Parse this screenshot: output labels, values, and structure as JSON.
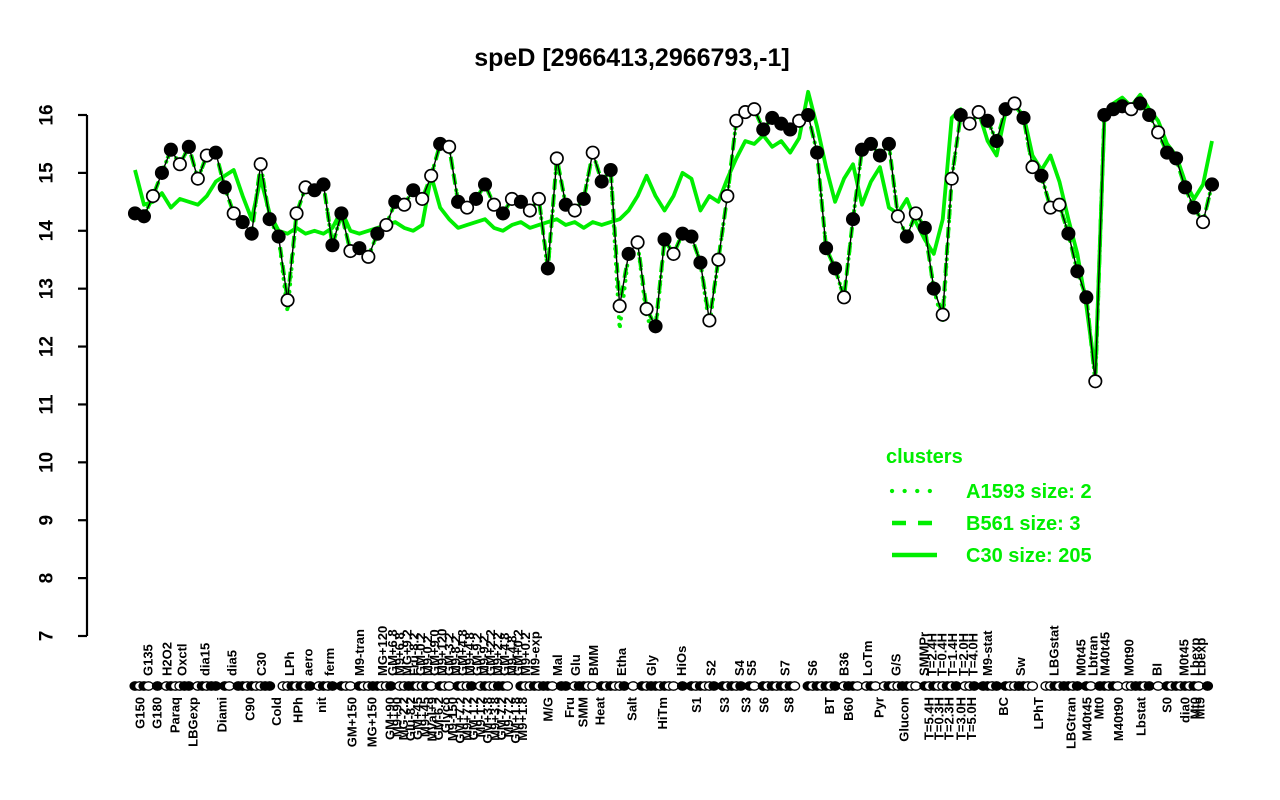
{
  "title": "speD [2966413,2966793,-1]",
  "colors": {
    "cluster_green": "#00ee00",
    "series_black": "#000000",
    "background": "#ffffff"
  },
  "legend": {
    "header": "clusters",
    "items": [
      {
        "label": "A1593 size: 2",
        "style": "dotted"
      },
      {
        "label": "B561 size: 3",
        "style": "dashed"
      },
      {
        "label": "C30 size: 205",
        "style": "solid"
      }
    ]
  },
  "chart_data": {
    "type": "line",
    "title": "speD [2966413,2966793,-1]",
    "ylabel": "",
    "xlabel": "",
    "ylim": [
      7,
      16
    ],
    "yticks": [
      7,
      8,
      9,
      10,
      11,
      12,
      13,
      14,
      15,
      16
    ],
    "x_index_range": [
      0,
      120
    ],
    "grid": false,
    "legend_position": "right-middle",
    "series": [
      {
        "name": "speD expression",
        "color": "#000000",
        "style": "points",
        "marker": "circle-filled-or-open",
        "values": [
          14.3,
          14.25,
          14.6,
          15.0,
          15.4,
          15.15,
          15.45,
          14.9,
          15.3,
          15.35,
          14.75,
          14.3,
          14.15,
          13.95,
          15.15,
          14.2,
          13.9,
          12.8,
          14.3,
          14.75,
          14.7,
          14.8,
          13.75,
          14.3,
          13.65,
          13.7,
          13.55,
          13.95,
          14.1,
          14.5,
          14.45,
          14.7,
          14.55,
          14.95,
          15.5,
          15.45,
          14.5,
          14.4,
          14.55,
          14.8,
          14.45,
          14.3,
          14.55,
          14.5,
          14.35,
          14.55,
          13.35,
          15.25,
          14.45,
          14.35,
          14.55,
          15.35,
          14.85,
          15.05,
          12.7,
          13.6,
          13.8,
          12.65,
          12.35,
          13.85,
          13.6,
          13.95,
          13.9,
          13.45,
          12.45,
          13.5,
          14.6,
          15.9,
          16.05,
          16.1,
          15.75,
          15.95,
          15.85,
          15.75,
          15.9,
          16.0,
          15.35,
          13.7,
          13.35,
          12.85,
          14.2,
          15.4,
          15.5,
          15.3,
          15.5,
          14.25,
          13.9,
          14.3,
          14.05,
          13.0,
          12.55,
          14.9,
          16.0,
          15.85,
          16.05,
          15.9,
          15.55,
          16.1,
          16.2,
          15.95,
          15.1,
          14.95,
          14.4,
          14.45,
          13.95,
          13.3,
          12.85,
          11.4,
          16.0,
          16.1,
          16.15,
          16.1,
          16.2,
          16.0,
          15.7,
          15.35,
          15.25,
          14.75,
          14.4,
          14.15,
          14.8
        ],
        "point_fills": [
          1,
          1,
          0,
          1,
          1,
          0,
          1,
          0,
          0,
          1,
          1,
          0,
          1,
          1,
          0,
          1,
          1,
          0,
          0,
          0,
          1,
          1,
          1,
          1,
          0,
          1,
          0,
          1,
          0,
          1,
          0,
          1,
          0,
          0,
          1,
          0,
          1,
          0,
          1,
          1,
          0,
          1,
          0,
          1,
          0,
          0,
          1,
          0,
          1,
          0,
          1,
          0,
          1,
          1,
          0,
          1,
          0,
          0,
          1,
          1,
          0,
          1,
          1,
          1,
          0,
          0,
          0,
          0,
          0,
          0,
          1,
          1,
          1,
          1,
          0,
          1,
          1,
          1,
          1,
          0,
          1,
          1,
          1,
          1,
          1,
          0,
          1,
          0,
          1,
          1,
          0,
          0,
          1,
          0,
          0,
          1,
          1,
          1,
          0,
          1,
          0,
          1,
          0,
          0,
          1,
          1,
          1,
          0,
          1,
          1,
          1,
          0,
          1,
          1,
          0,
          1,
          1,
          1,
          1,
          0,
          1
        ]
      },
      {
        "name": "A1593 size: 2",
        "color": "#00ee00",
        "style": "dotted",
        "values": [
          14.3,
          14.25,
          14.6,
          15.0,
          15.4,
          15.15,
          15.45,
          14.9,
          15.3,
          15.35,
          14.75,
          14.3,
          14.15,
          13.95,
          15.15,
          14.2,
          13.9,
          12.6,
          14.3,
          14.75,
          14.7,
          14.8,
          13.75,
          14.3,
          13.65,
          13.7,
          13.55,
          13.95,
          14.1,
          14.5,
          14.45,
          14.7,
          14.55,
          14.95,
          15.5,
          15.45,
          14.5,
          14.4,
          14.55,
          14.8,
          14.45,
          14.3,
          14.55,
          14.5,
          14.35,
          14.55,
          13.3,
          15.25,
          14.45,
          14.35,
          14.55,
          15.35,
          14.85,
          15.05,
          12.3,
          13.6,
          13.8,
          12.5,
          12.25,
          13.85,
          13.6,
          13.95,
          13.9,
          13.45,
          12.35,
          13.5,
          14.6,
          15.9,
          16.05,
          16.1,
          15.75,
          15.95,
          15.85,
          15.75,
          15.9,
          16.0,
          15.35,
          13.7,
          13.35,
          12.85,
          14.2,
          15.4,
          15.5,
          15.3,
          15.5,
          14.25,
          13.9,
          14.3,
          14.05,
          13.0,
          12.4,
          14.9,
          16.0,
          15.85,
          16.05,
          15.9,
          15.55,
          16.1,
          16.2,
          15.95,
          15.1,
          14.95,
          14.4,
          14.45,
          13.95,
          13.3,
          12.85,
          11.4,
          16.0,
          16.1,
          16.15,
          16.1,
          16.2,
          16.0,
          15.7,
          15.35,
          15.25,
          14.75,
          14.4,
          14.15,
          14.8
        ]
      },
      {
        "name": "B561 size: 3",
        "color": "#00ee00",
        "style": "dashed",
        "values": [
          14.3,
          14.25,
          14.6,
          15.0,
          15.4,
          15.15,
          15.45,
          14.9,
          15.3,
          15.35,
          14.75,
          14.3,
          14.15,
          13.95,
          15.15,
          14.2,
          13.9,
          12.8,
          14.3,
          14.75,
          14.7,
          14.8,
          13.75,
          14.3,
          13.65,
          13.7,
          13.55,
          13.95,
          14.1,
          14.5,
          14.45,
          14.7,
          14.55,
          14.95,
          15.5,
          15.45,
          14.5,
          14.4,
          14.55,
          14.8,
          14.45,
          14.3,
          14.55,
          14.5,
          14.35,
          14.55,
          13.35,
          15.25,
          14.45,
          14.35,
          14.55,
          15.35,
          14.85,
          15.05,
          12.7,
          13.6,
          13.8,
          12.65,
          12.35,
          13.85,
          13.6,
          13.95,
          13.9,
          13.45,
          12.45,
          13.5,
          14.6,
          15.9,
          16.05,
          16.1,
          15.75,
          15.95,
          15.85,
          15.75,
          15.9,
          16.0,
          15.35,
          13.7,
          13.35,
          12.85,
          14.2,
          15.4,
          15.5,
          15.3,
          15.5,
          14.25,
          13.9,
          14.3,
          14.05,
          13.0,
          12.55,
          14.9,
          16.0,
          15.85,
          16.05,
          15.9,
          15.55,
          16.1,
          16.2,
          15.95,
          15.1,
          14.95,
          14.4,
          14.45,
          13.95,
          13.3,
          12.85,
          11.4,
          16.0,
          16.1,
          16.15,
          16.1,
          16.2,
          16.0,
          15.7,
          15.35,
          15.25,
          14.75,
          14.4,
          14.15,
          14.8
        ]
      },
      {
        "name": "C30 size: 205",
        "color": "#00ee00",
        "style": "solid",
        "values": [
          15.05,
          14.45,
          14.5,
          14.65,
          14.4,
          14.55,
          14.5,
          14.45,
          14.6,
          14.85,
          14.95,
          15.05,
          14.6,
          14.2,
          14.9,
          14.3,
          14.0,
          13.95,
          14.05,
          13.95,
          14.0,
          13.95,
          14.05,
          14.35,
          14.0,
          13.95,
          14.0,
          14.05,
          14.1,
          14.15,
          14.05,
          14.0,
          14.1,
          14.95,
          14.4,
          14.2,
          14.05,
          14.1,
          14.15,
          14.2,
          14.05,
          14.0,
          14.1,
          14.15,
          14.05,
          14.1,
          14.15,
          14.2,
          14.1,
          14.15,
          14.05,
          14.15,
          14.1,
          14.15,
          14.2,
          14.35,
          14.6,
          14.95,
          14.6,
          14.35,
          14.6,
          15.0,
          14.9,
          14.35,
          14.6,
          14.5,
          14.9,
          15.25,
          15.55,
          15.5,
          15.65,
          15.45,
          15.55,
          15.35,
          15.6,
          16.4,
          15.8,
          15.1,
          14.5,
          14.9,
          15.15,
          14.45,
          14.85,
          15.1,
          14.4,
          14.3,
          14.55,
          14.15,
          13.85,
          13.6,
          14.2,
          15.95,
          16.1,
          15.8,
          16.05,
          15.55,
          15.3,
          16.05,
          16.15,
          16.0,
          15.3,
          15.05,
          15.3,
          14.85,
          14.2,
          13.6,
          12.7,
          11.55,
          15.9,
          16.2,
          16.3,
          16.15,
          16.35,
          16.1,
          15.9,
          15.5,
          15.3,
          14.85,
          14.55,
          14.8,
          15.55
        ]
      }
    ],
    "x_labels_top": [
      {
        "t": "G135",
        "p": 1.45
      },
      {
        "t": "H2O2",
        "p": 3.56
      },
      {
        "t": "Oxctl",
        "p": 5.23
      },
      {
        "t": "dia15",
        "p": 7.79
      },
      {
        "t": "dia5",
        "p": 10.8
      },
      {
        "t": "C30",
        "p": 14.1
      },
      {
        "t": "LPh",
        "p": 17.25
      },
      {
        "t": "aero",
        "p": 19.26
      },
      {
        "t": "ferm",
        "p": 21.7
      },
      {
        "t": "M9-tran",
        "p": 25.0
      },
      {
        "t": "MG+120",
        "p": 27.6
      },
      {
        "t": "GM+6.8",
        "p": 28.7
      },
      {
        "t": "M9+6.8",
        "p": 29.5
      },
      {
        "t": "MG+9.2",
        "p": 30.3
      },
      {
        "t": "Fru-8.2",
        "p": 31.1
      },
      {
        "t": "GM-0.2",
        "p": 31.8
      },
      {
        "t": "M9-0.2",
        "p": 32.6
      },
      {
        "t": "GM+9.0",
        "p": 33.4
      },
      {
        "t": "M9+120",
        "p": 34.2
      },
      {
        "t": "GM-3.2",
        "p": 35.0
      },
      {
        "t": "M9-8.2",
        "p": 35.7
      },
      {
        "t": "GM+4.8",
        "p": 36.5
      },
      {
        "t": "M9+4.8",
        "p": 37.3
      },
      {
        "t": "GM-9.2",
        "p": 38.1
      },
      {
        "t": "M9-9.2",
        "p": 38.9
      },
      {
        "t": "GM+2.2",
        "p": 39.6
      },
      {
        "t": "M9+2.2",
        "p": 40.4
      },
      {
        "t": "GM-4.8",
        "p": 41.2
      },
      {
        "t": "M9-4.8",
        "p": 42.0
      },
      {
        "t": "GM+0.2",
        "p": 42.7
      },
      {
        "t": "M9+0.2",
        "p": 43.5
      },
      {
        "t": "M9-exp",
        "p": 44.6
      },
      {
        "t": "Mal",
        "p": 47.1
      },
      {
        "t": "Glu",
        "p": 49.1
      },
      {
        "t": "BMM",
        "p": 51.1
      },
      {
        "t": "Etha",
        "p": 54.2
      },
      {
        "t": "Gly",
        "p": 57.55
      },
      {
        "t": "HiOs",
        "p": 60.9
      },
      {
        "t": "S2",
        "p": 64.2
      },
      {
        "t": "S4",
        "p": 67.35
      },
      {
        "t": "S5",
        "p": 68.7
      },
      {
        "t": "S7",
        "p": 72.45
      },
      {
        "t": "S6",
        "p": 75.5
      },
      {
        "t": "B36",
        "p": 79.0
      },
      {
        "t": "LoTm",
        "p": 81.6
      },
      {
        "t": "G/S",
        "p": 84.8
      },
      {
        "t": "SMMPr",
        "p": 87.9
      },
      {
        "t": "T=2.4H",
        "p": 88.8
      },
      {
        "t": "T=0.4H",
        "p": 89.9
      },
      {
        "t": "T=1.4H",
        "p": 91.1
      },
      {
        "t": "T=2.0H",
        "p": 92.3
      },
      {
        "t": "T=4.0H",
        "p": 93.4
      },
      {
        "t": "M9-stat",
        "p": 95.0
      },
      {
        "t": "Sw",
        "p": 98.7
      },
      {
        "t": "LBGstat",
        "p": 102.4
      },
      {
        "t": "M0t45",
        "p": 105.4
      },
      {
        "t": "Lbtran",
        "p": 106.75
      },
      {
        "t": "M40t45",
        "p": 108.1
      },
      {
        "t": "M0t90",
        "p": 110.75
      },
      {
        "t": "BI",
        "p": 113.9
      },
      {
        "t": "M0t45",
        "p": 116.9
      },
      {
        "t": "Lbexp",
        "p": 118.1
      },
      {
        "t": "Lbexp",
        "p": 118.8
      }
    ],
    "x_labels_bottom": [
      {
        "t": "G150",
        "p": 0.56
      },
      {
        "t": "G180",
        "p": 2.45
      },
      {
        "t": "Paraq",
        "p": 4.45
      },
      {
        "t": "LBGexp",
        "p": 6.46
      },
      {
        "t": "Diami",
        "p": 9.68
      },
      {
        "t": "C90",
        "p": 12.8
      },
      {
        "t": "Cold",
        "p": 15.8
      },
      {
        "t": "HPh",
        "p": 18.15
      },
      {
        "t": "nit",
        "p": 20.8
      },
      {
        "t": "GM+150",
        "p": 24.2
      },
      {
        "t": "MG+150",
        "p": 26.4
      },
      {
        "t": "GM+90",
        "p": 28.4
      },
      {
        "t": "M9+90",
        "p": 29.2
      },
      {
        "t": "MG-2.2",
        "p": 29.9
      },
      {
        "t": "Glu-8.2",
        "p": 30.7
      },
      {
        "t": "GM+45",
        "p": 31.5
      },
      {
        "t": "M9+45",
        "p": 32.3
      },
      {
        "t": "MVal+9",
        "p": 33.1
      },
      {
        "t": "GM-6.2",
        "p": 33.8
      },
      {
        "t": "Glyco",
        "p": 34.6
      },
      {
        "t": "M9-150",
        "p": 35.4
      },
      {
        "t": "GM+7.2",
        "p": 36.2
      },
      {
        "t": "M9+7.2",
        "p": 37.0
      },
      {
        "t": "GM-1.2",
        "p": 37.7
      },
      {
        "t": "M9-1.2",
        "p": 38.5
      },
      {
        "t": "GM+3.8",
        "p": 39.3
      },
      {
        "t": "M9+3.8",
        "p": 40.1
      },
      {
        "t": "GM-7.2",
        "p": 40.85
      },
      {
        "t": "M9-7.2",
        "p": 41.6
      },
      {
        "t": "GM+1.8",
        "p": 42.4
      },
      {
        "t": "M9+1.8",
        "p": 43.2
      },
      {
        "t": "M/G",
        "p": 46.0
      },
      {
        "t": "Fru",
        "p": 48.4
      },
      {
        "t": "SMM",
        "p": 49.9
      },
      {
        "t": "Heat",
        "p": 51.8
      },
      {
        "t": "Salt",
        "p": 55.4
      },
      {
        "t": "HiTm",
        "p": 58.8
      },
      {
        "t": "S1",
        "p": 62.6
      },
      {
        "t": "S3",
        "p": 65.7
      },
      {
        "t": "S3",
        "p": 68.1
      },
      {
        "t": "S6",
        "p": 70.1
      },
      {
        "t": "S8",
        "p": 72.9
      },
      {
        "t": "BT",
        "p": 77.4
      },
      {
        "t": "B60",
        "p": 79.5
      },
      {
        "t": "Pyr",
        "p": 82.9
      },
      {
        "t": "Glucon",
        "p": 85.7
      },
      {
        "t": "T=5.4H",
        "p": 88.5
      },
      {
        "t": "T=0.3H",
        "p": 89.6
      },
      {
        "t": "T=2.3H",
        "p": 90.7
      },
      {
        "t": "T=3.0H",
        "p": 92.05
      },
      {
        "t": "T=5.0H",
        "p": 93.2
      },
      {
        "t": "BC",
        "p": 96.8
      },
      {
        "t": "LPhT",
        "p": 100.7
      },
      {
        "t": "LBGtran",
        "p": 104.3
      },
      {
        "t": "M40t45",
        "p": 106.1
      },
      {
        "t": "Mt0",
        "p": 107.4
      },
      {
        "t": "M40t90",
        "p": 109.6
      },
      {
        "t": "Lbstat",
        "p": 112.1
      },
      {
        "t": "S0",
        "p": 115.0
      },
      {
        "t": "dia0",
        "p": 117.0
      },
      {
        "t": "Mt0",
        "p": 118.1
      },
      {
        "t": "Mt9",
        "p": 118.7
      }
    ]
  }
}
